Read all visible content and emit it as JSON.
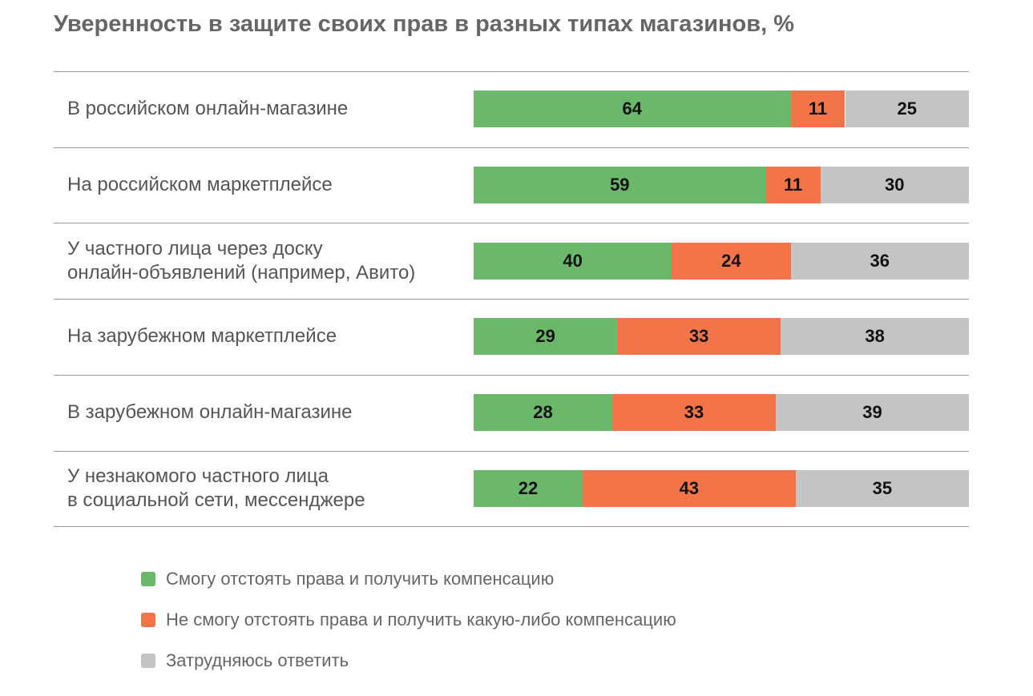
{
  "chart_data": {
    "type": "stacked-bar-horizontal",
    "title": "Уверенность в защите своих прав в разных типах магазинов, %",
    "categories": [
      "В российском онлайн-магазине",
      "На российском маркетплейсе",
      "У частного лица через доску\nонлайн-объявлений (например, Авито)",
      "На зарубежном маркетплейсе",
      "В зарубежном онлайн-магазине",
      "У незнакомого частного лица\nв социальной сети, мессенджере"
    ],
    "series": [
      {
        "name": "Смогу отстоять права и получить компенсацию",
        "color": "#6cb86b",
        "values": [
          64,
          59,
          40,
          29,
          28,
          22
        ]
      },
      {
        "name": "Не смогу отстоять права и получить какую-либо компенсацию",
        "color": "#f47449",
        "values": [
          11,
          11,
          24,
          33,
          33,
          43
        ]
      },
      {
        "name": "Затрудняюсь ответить",
        "color": "#c4c4c4",
        "values": [
          25,
          30,
          36,
          38,
          39,
          35
        ]
      }
    ],
    "xlim": [
      0,
      100
    ]
  }
}
